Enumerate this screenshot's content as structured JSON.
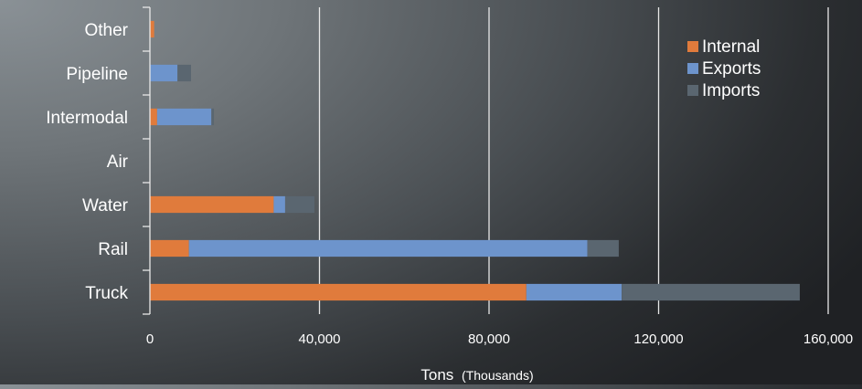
{
  "chart_data": {
    "type": "bar",
    "orientation": "horizontal",
    "stacked": true,
    "categories": [
      "Truck",
      "Rail",
      "Water",
      "Air",
      "Intermodal",
      "Pipeline",
      "Other"
    ],
    "series": [
      {
        "name": "Internal",
        "values": [
          88800,
          9200,
          29200,
          0,
          1700,
          0,
          1000
        ],
        "color": "#e07b3c"
      },
      {
        "name": "Exports",
        "values": [
          22500,
          94000,
          2700,
          0,
          12800,
          6500,
          0
        ],
        "color": "#6d94cc"
      },
      {
        "name": "Imports",
        "values": [
          42000,
          7400,
          6900,
          0,
          600,
          3200,
          0
        ],
        "color": "#5a6670"
      }
    ],
    "xlabel_main": "Tons",
    "xlabel_sub": "(Thousands)",
    "xlim": [
      0,
      160000
    ],
    "xticks": [
      0,
      40000,
      80000,
      120000,
      160000
    ],
    "xtick_labels": [
      "0",
      "40,000",
      "80,000",
      "120,000",
      "160,000"
    ],
    "grid": "vertical",
    "legend_position": "top-right"
  }
}
